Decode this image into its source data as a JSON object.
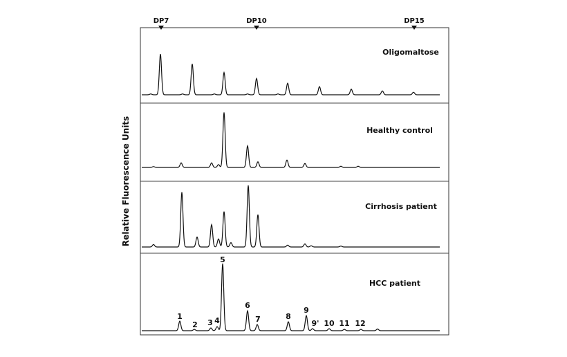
{
  "chart_data": {
    "type": "line",
    "ylabel": "Relative Fluorescence Units",
    "xlabel": "",
    "reference_markers": [
      "DP7",
      "DP10",
      "DP15"
    ],
    "series": [
      {
        "name": "Oligomaltose",
        "peaks": [
          {
            "x": 232,
            "h": 0.95
          },
          {
            "x": 278,
            "h": 0.72
          },
          {
            "x": 324,
            "h": 0.52
          },
          {
            "x": 371,
            "h": 0.38
          },
          {
            "x": 416,
            "h": 0.27
          },
          {
            "x": 462,
            "h": 0.19
          },
          {
            "x": 508,
            "h": 0.13
          },
          {
            "x": 553,
            "h": 0.09
          },
          {
            "x": 598,
            "h": 0.06
          },
          {
            "x": 358,
            "h": 0.02
          },
          {
            "x": 218,
            "h": 0.02
          },
          {
            "x": 264,
            "h": 0.02
          },
          {
            "x": 310,
            "h": 0.02
          },
          {
            "x": 402,
            "h": 0.02
          }
        ]
      },
      {
        "name": "Healthy control",
        "peaks": [
          {
            "x": 262,
            "h": 0.08
          },
          {
            "x": 306,
            "h": 0.08
          },
          {
            "x": 316,
            "h": 0.05
          },
          {
            "x": 324,
            "h": 0.97
          },
          {
            "x": 358,
            "h": 0.38
          },
          {
            "x": 373,
            "h": 0.1
          },
          {
            "x": 415,
            "h": 0.13
          },
          {
            "x": 441,
            "h": 0.07
          },
          {
            "x": 493,
            "h": 0.02
          },
          {
            "x": 518,
            "h": 0.02
          },
          {
            "x": 222,
            "h": 0.015
          }
        ]
      },
      {
        "name": "Cirrhosis patient",
        "peaks": [
          {
            "x": 222,
            "h": 0.04
          },
          {
            "x": 263,
            "h": 0.88
          },
          {
            "x": 285,
            "h": 0.16
          },
          {
            "x": 306,
            "h": 0.36
          },
          {
            "x": 316,
            "h": 0.13
          },
          {
            "x": 324,
            "h": 0.57
          },
          {
            "x": 334,
            "h": 0.07
          },
          {
            "x": 359,
            "h": 0.99
          },
          {
            "x": 373,
            "h": 0.52
          },
          {
            "x": 416,
            "h": 0.03
          },
          {
            "x": 441,
            "h": 0.05
          },
          {
            "x": 450,
            "h": 0.02
          },
          {
            "x": 493,
            "h": 0.015
          }
        ]
      },
      {
        "name": "HCC patient",
        "peaks": [
          {
            "x": 260,
            "h": 0.14
          },
          {
            "x": 281,
            "h": 0.02
          },
          {
            "x": 305,
            "h": 0.04
          },
          {
            "x": 314,
            "h": 0.06
          },
          {
            "x": 322,
            "h": 0.98
          },
          {
            "x": 358,
            "h": 0.29
          },
          {
            "x": 372,
            "h": 0.09
          },
          {
            "x": 417,
            "h": 0.13
          },
          {
            "x": 443,
            "h": 0.22
          },
          {
            "x": 452,
            "h": 0.03
          },
          {
            "x": 476,
            "h": 0.03
          },
          {
            "x": 498,
            "h": 0.02
          },
          {
            "x": 522,
            "h": 0.02
          },
          {
            "x": 546,
            "h": 0.025
          }
        ],
        "peak_labels": [
          "1",
          "2",
          "3",
          "4",
          "5",
          "6",
          "7",
          "8",
          "9",
          "9'",
          "10",
          "11",
          "12"
        ]
      }
    ],
    "grid": false,
    "legend": "none"
  }
}
